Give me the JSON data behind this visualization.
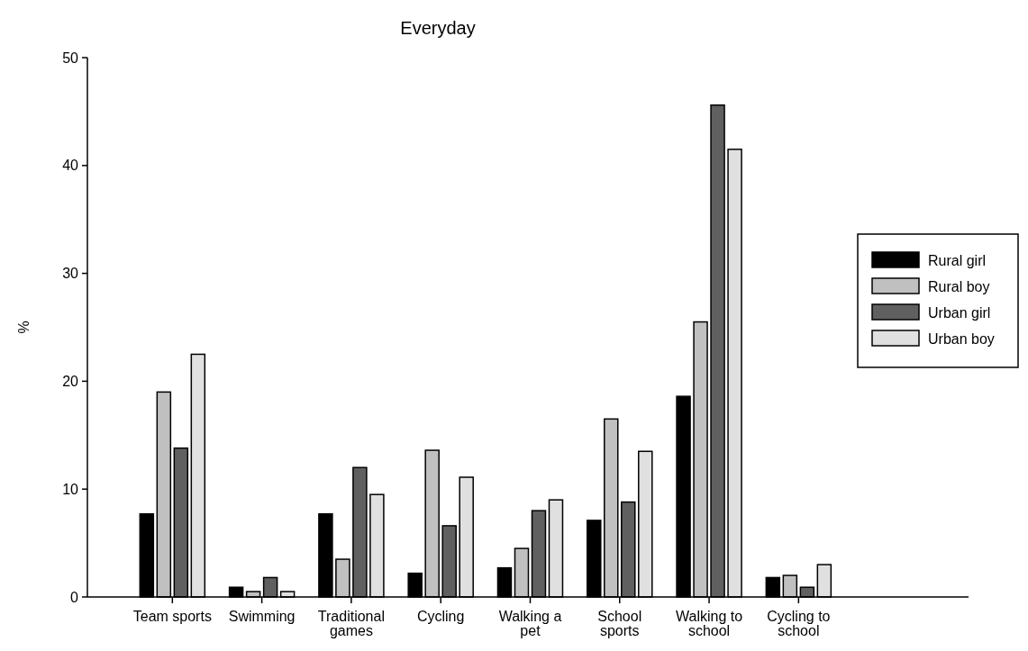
{
  "chart_data": {
    "type": "bar",
    "title": "Everyday",
    "ylabel": "%",
    "categories": [
      "Team sports",
      "Swimming",
      "Traditional games",
      "Cycling",
      "Walking a pet",
      "School sports",
      "Walking to school",
      "Cycling to school"
    ],
    "series": [
      {
        "name": "Rural girl",
        "color": "#000000",
        "values": [
          7.7,
          0.9,
          7.7,
          2.2,
          2.7,
          7.1,
          18.6,
          1.8
        ]
      },
      {
        "name": "Rural boy",
        "color": "#c0c0c0",
        "values": [
          19.0,
          0.5,
          3.5,
          13.6,
          4.5,
          16.5,
          25.5,
          2.0
        ]
      },
      {
        "name": "Urban girl",
        "color": "#606060",
        "values": [
          13.8,
          1.8,
          12.0,
          6.6,
          8.0,
          8.8,
          45.6,
          0.9
        ]
      },
      {
        "name": "Urban boy",
        "color": "#e0e0e0",
        "values": [
          22.5,
          0.5,
          9.5,
          11.1,
          9.0,
          13.5,
          41.5,
          3.0
        ]
      }
    ],
    "ylim": [
      0,
      50
    ],
    "yticks": [
      0,
      10,
      20,
      30,
      40,
      50
    ],
    "legend": "right"
  }
}
